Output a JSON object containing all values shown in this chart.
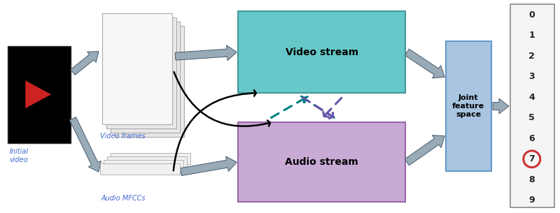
{
  "bg_color": "#ffffff",
  "video_box_color": "#000000",
  "video_stream_color": "#66c8c8",
  "audio_stream_color": "#c8aad4",
  "joint_color": "#a8c4e0",
  "output_box_color": "#f5f5f5",
  "arrow_gray": "#8899aa",
  "arrow_gray_face": "#9aabb8",
  "teal": "#008080",
  "purple": "#6655aa",
  "label_blue": "#4169CD",
  "black": "#000000",
  "circle_red": "#cc3333",
  "digits": [
    "0",
    "1",
    "2",
    "3",
    "4",
    "5",
    "6",
    "7",
    "8",
    "9"
  ],
  "circled": "7",
  "layout": {
    "fig_w": 8.0,
    "fig_h": 3.05,
    "dpi": 100
  }
}
